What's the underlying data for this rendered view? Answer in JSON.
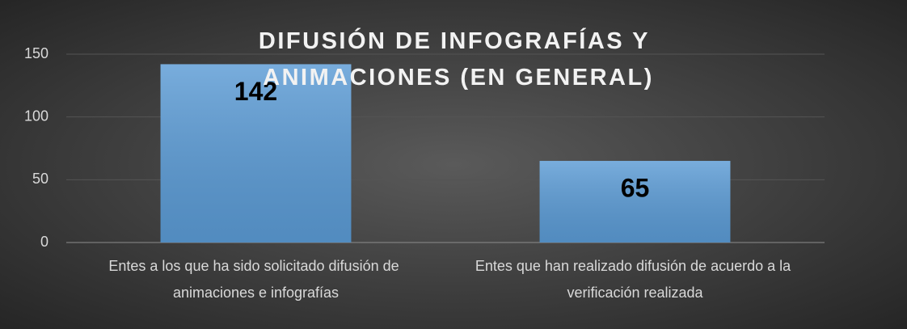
{
  "chart_data": {
    "type": "bar",
    "title": "DIFUSIÓN DE INFOGRAFÍAS Y ANIMACIONES (EN GENERAL)",
    "categories": [
      "Entes a los que ha sido solicitado difusión de animaciones e infografías",
      "Entes que han realizado difusión de acuerdo a la verificación realizada"
    ],
    "values": [
      142,
      65
    ],
    "color": "#5b9bd5",
    "ylim": [
      0,
      150
    ],
    "yticks": [
      0,
      50,
      100,
      150
    ],
    "grid": true
  }
}
